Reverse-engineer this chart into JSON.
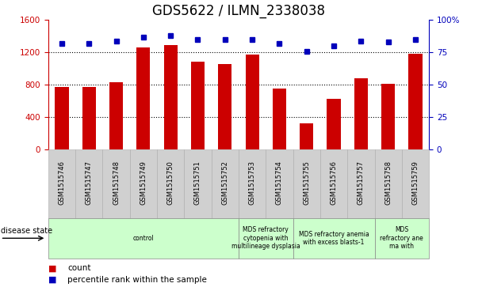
{
  "title": "GDS5622 / ILMN_2338038",
  "samples": [
    "GSM1515746",
    "GSM1515747",
    "GSM1515748",
    "GSM1515749",
    "GSM1515750",
    "GSM1515751",
    "GSM1515752",
    "GSM1515753",
    "GSM1515754",
    "GSM1515755",
    "GSM1515756",
    "GSM1515757",
    "GSM1515758",
    "GSM1515759"
  ],
  "counts": [
    770,
    770,
    830,
    1260,
    1295,
    1080,
    1060,
    1175,
    750,
    320,
    620,
    880,
    810,
    1185
  ],
  "percentiles": [
    82,
    82,
    84,
    87,
    88,
    85,
    85,
    85,
    82,
    76,
    80,
    84,
    83,
    85
  ],
  "bar_color": "#cc0000",
  "dot_color": "#0000bb",
  "left_ylim": [
    0,
    1600
  ],
  "right_ylim": [
    0,
    100
  ],
  "left_yticks": [
    0,
    400,
    800,
    1200,
    1600
  ],
  "right_yticks": [
    0,
    25,
    50,
    75,
    100
  ],
  "right_yticklabels": [
    "0",
    "25",
    "50",
    "75",
    "100%"
  ],
  "grid_values": [
    400,
    800,
    1200
  ],
  "dis_groups": [
    {
      "label": "control",
      "start": 0,
      "end": 7,
      "color": "#ccffcc"
    },
    {
      "label": "MDS refractory\ncytopenia with\nmultilineage dysplasia",
      "start": 7,
      "end": 9,
      "color": "#ccffcc"
    },
    {
      "label": "MDS refractory anemia\nwith excess blasts-1",
      "start": 9,
      "end": 12,
      "color": "#ccffcc"
    },
    {
      "label": "MDS\nrefractory ane\nma with",
      "start": 12,
      "end": 14,
      "color": "#ccffcc"
    }
  ],
  "disease_state_label": "disease state",
  "legend_count_label": "count",
  "legend_percentile_label": "percentile rank within the sample",
  "tick_label_color": "#cc0000",
  "right_tick_color": "#0000bb",
  "title_fontsize": 12,
  "bar_width": 0.5,
  "background_color": "#ffffff",
  "sample_box_color": "#d0d0d0",
  "sample_box_edge": "#aaaaaa"
}
